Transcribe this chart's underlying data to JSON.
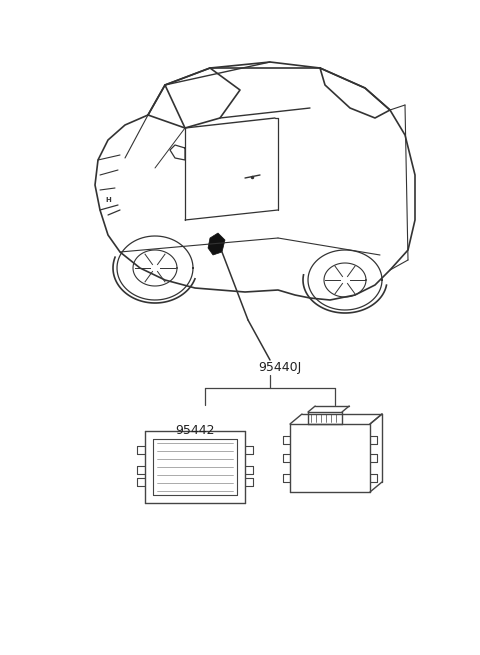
{
  "background_color": "#ffffff",
  "fig_width": 4.8,
  "fig_height": 6.55,
  "dpi": 100,
  "label_95440J": "95440J",
  "label_95442": "95442",
  "line_color": "#333333",
  "car_line_color": "#555555",
  "part_line_color": "#444444"
}
